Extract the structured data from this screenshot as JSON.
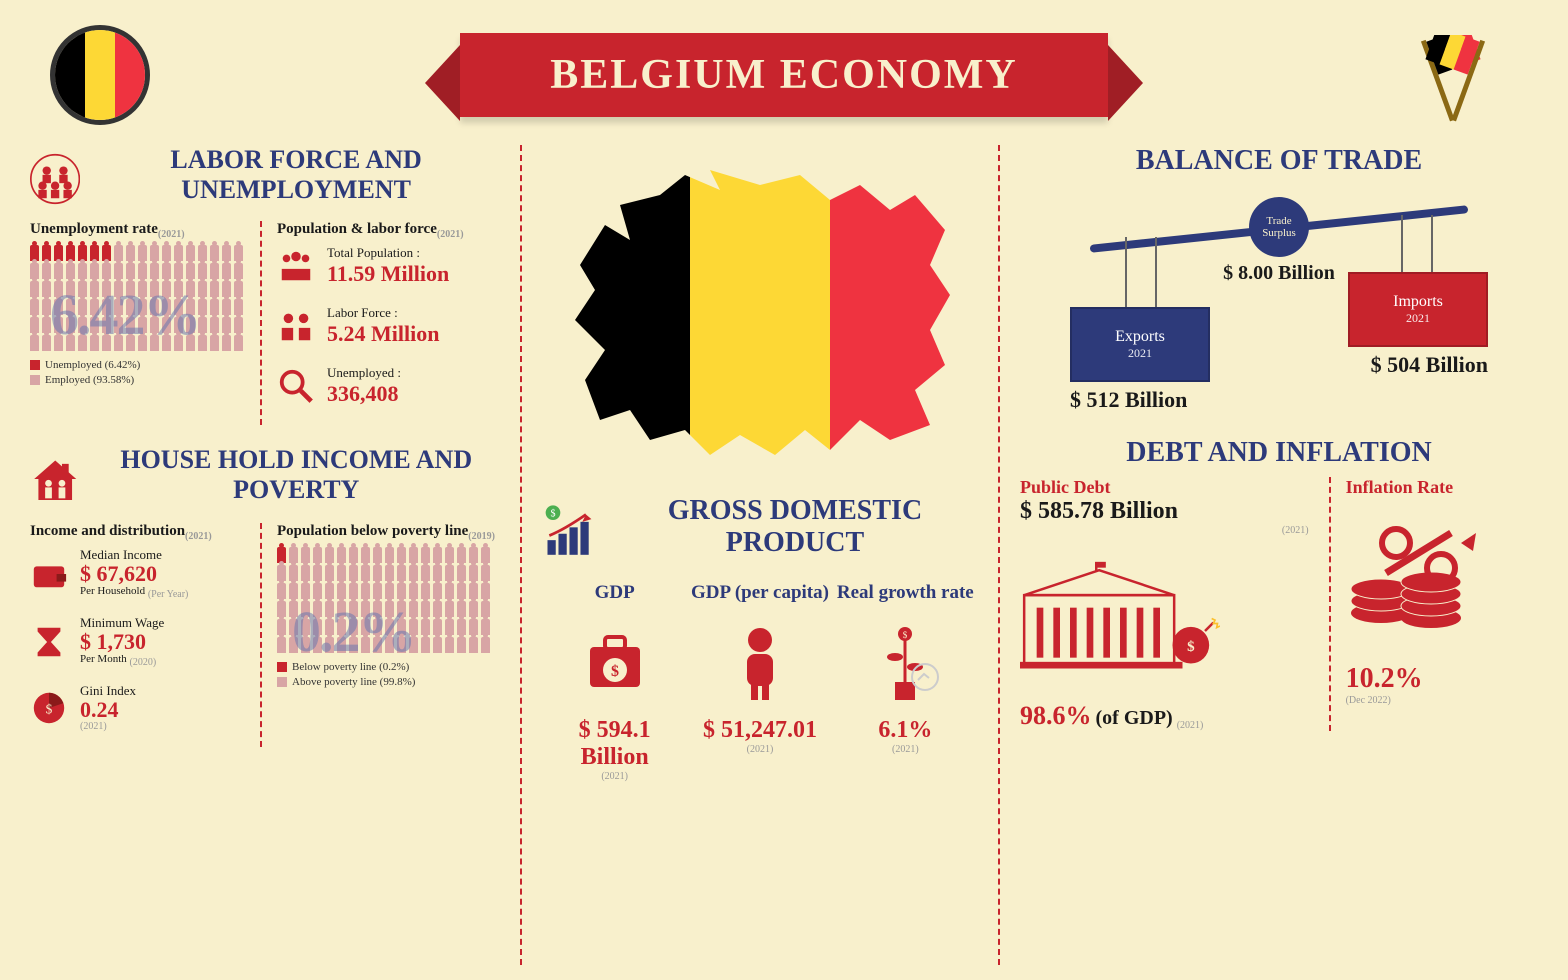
{
  "title": "BELGIUM ECONOMY",
  "colors": {
    "bg": "#f8f0cc",
    "red": "#c8242d",
    "navy": "#2d3a7a",
    "flag_black": "#000000",
    "flag_yellow": "#fdd835",
    "flag_red": "#ef3340",
    "light_people": "#d8a5a5"
  },
  "labor": {
    "title": "LABOR FORCE AND UNEMPLOYMENT",
    "unemployment_title": "Unemployment rate",
    "unemployment_year": "(2021)",
    "unemployment_pct": "6.42%",
    "legend_unemployed": "Unemployed (6.42%)",
    "legend_employed": "Employed (93.58%)",
    "pop_title": "Population & labor force",
    "pop_year": "(2021)",
    "total_pop_label": "Total Population :",
    "total_pop_val": "11.59 Million",
    "labor_force_label": "Labor Force :",
    "labor_force_val": "5.24 Million",
    "unemployed_label": "Unemployed :",
    "unemployed_val": "336,408"
  },
  "household": {
    "title": "HOUSE HOLD INCOME AND POVERTY",
    "income_title": "Income and distribution",
    "income_year": "(2021)",
    "median_label": "Median Income",
    "median_val": "$ 67,620",
    "median_sub": "Per Household",
    "median_sub_year": "(Per Year)",
    "wage_label": "Minimum Wage",
    "wage_val": "$ 1,730",
    "wage_sub": "Per Month",
    "wage_year": "(2020)",
    "gini_label": "Gini Index",
    "gini_val": "0.24",
    "gini_year": "(2021)",
    "poverty_title": "Population below poverty line",
    "poverty_year": "(2019)",
    "poverty_pct": "0.2%",
    "legend_below": "Below poverty line (0.2%)",
    "legend_above": "Above poverty line (99.8%)"
  },
  "gdp": {
    "title": "GROSS DOMESTIC PRODUCT",
    "gdp_label": "GDP",
    "gdp_val": "$ 594.1 Billion",
    "gdp_year": "(2021)",
    "percap_label": "GDP (per capita)",
    "percap_val": "$ 51,247.01",
    "percap_year": "(2021)",
    "growth_label": "Real growth rate",
    "growth_val": "6.1%",
    "growth_year": "(2021)"
  },
  "trade": {
    "title": "BALANCE OF TRADE",
    "surplus_label": "Trade Surplus",
    "surplus_val": "$ 8.00 Billion",
    "exports_label": "Exports",
    "exports_year": "2021",
    "exports_val": "$ 512 Billion",
    "imports_label": "Imports",
    "imports_year": "2021",
    "imports_val": "$ 504 Billion"
  },
  "debt": {
    "title": "DEBT AND INFLATION",
    "debt_label": "Public Debt",
    "debt_val": "$ 585.78 Billion",
    "debt_year": "(2021)",
    "debt_pct": "98.6%",
    "of_gdp": "(of GDP)",
    "of_gdp_year": "(2021)",
    "inflation_label": "Inflation Rate",
    "inflation_val": "10.2%",
    "inflation_year": "(Dec 2022)"
  }
}
